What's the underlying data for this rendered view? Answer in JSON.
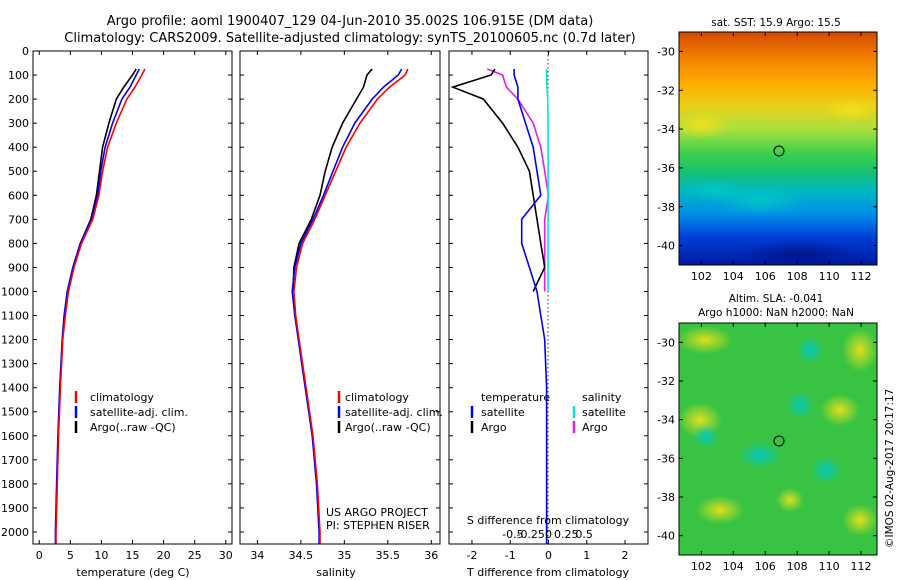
{
  "title_line1": "Argo profile: aoml 1900407_129 04-Jun-2010 35.002S 106.915E (DM data)",
  "title_line2": "Climatology: CARS2009. Satellite-adjusted climatology: synTS_20100605.nc (0.7d later)",
  "colors": {
    "climatology": "#ff0000",
    "satellite": "#0000ff",
    "argo": "#000000",
    "sal_satellite": "#00e5e5",
    "sal_argo": "#e020e0"
  },
  "depth_ticks": [
    "0",
    "100",
    "200",
    "300",
    "400",
    "500",
    "600",
    "700",
    "800",
    "900",
    "1000",
    "1100",
    "1200",
    "1300",
    "1400",
    "1500",
    "1600",
    "1700",
    "1800",
    "1900",
    "2000"
  ],
  "temp_panel": {
    "xlabel": "temperature (deg C)",
    "xticks": [
      "0",
      "5",
      "10",
      "15",
      "20",
      "25",
      "30"
    ],
    "legend": [
      "climatology",
      "satellite-adj. clim.",
      "Argo(..raw -QC)"
    ]
  },
  "sal_panel": {
    "xlabel": "salinity",
    "xticks": [
      "34",
      "34.5",
      "35",
      "35.5",
      "36"
    ],
    "legend": [
      "climatology",
      "satellite-adj. clim.",
      "Argo(..raw -QC)"
    ],
    "note1": "US ARGO PROJECT",
    "note2": "PI: STEPHEN RISER"
  },
  "diff_panel": {
    "xlabel": "T difference from climatology",
    "top_label": "S difference from climatology",
    "xticks_T": [
      "-2",
      "-1",
      "0",
      "1",
      "2"
    ],
    "xticks_S": [
      "-0.5",
      "-0.25",
      "0",
      "0.25",
      "0.5"
    ],
    "legend_temp_header": "temperature",
    "legend_sal_header": "salinity",
    "legend_temp": [
      "satellite",
      "Argo"
    ],
    "legend_sal": [
      "satellite",
      "Argo"
    ]
  },
  "map_sst": {
    "title": "sat. SST: 15.9 Argo: 15.5",
    "yticks": [
      "-30",
      "-32",
      "-34",
      "-36",
      "-38",
      "-40"
    ],
    "xticks": [
      "102",
      "104",
      "106",
      "108",
      "110",
      "112"
    ]
  },
  "map_sla": {
    "title1": "Altim. SLA: -0.041",
    "title2": "Argo h1000: NaN h2000: NaN",
    "yticks": [
      "-30",
      "-32",
      "-34",
      "-36",
      "-38",
      "-40"
    ],
    "xticks": [
      "102",
      "104",
      "106",
      "108",
      "110",
      "112"
    ]
  },
  "footer": "©IMOS 02-Aug-2017 20:17:17",
  "chart_data": [
    {
      "type": "line",
      "xlabel": "temperature (deg C)",
      "ylabel": "",
      "xlim": [
        -1,
        31
      ],
      "ylim": [
        2050,
        0
      ],
      "y": [
        75,
        100,
        150,
        200,
        300,
        400,
        500,
        600,
        700,
        800,
        900,
        1000,
        1100,
        1200,
        1400,
        1600,
        1800,
        2000,
        2050
      ],
      "series": [
        {
          "name": "climatology",
          "x": [
            17.0,
            16.5,
            15.4,
            14.1,
            12.4,
            11.0,
            10.2,
            9.6,
            8.6,
            6.8,
            5.6,
            4.7,
            4.2,
            3.8,
            3.4,
            3.1,
            2.9,
            2.7,
            2.7
          ]
        },
        {
          "name": "satellite-adj. clim.",
          "x": [
            16.1,
            15.6,
            14.6,
            13.3,
            11.8,
            10.6,
            9.9,
            9.4,
            8.4,
            6.6,
            5.4,
            4.5,
            4.0,
            3.7,
            3.3,
            3.0,
            2.8,
            2.6,
            2.6
          ]
        },
        {
          "name": "Argo(..raw -QC)",
          "x": [
            15.6,
            15.0,
            13.6,
            12.4,
            11.2,
            10.2,
            9.7,
            9.2,
            8.3,
            6.6,
            5.5,
            4.7
          ]
        }
      ]
    },
    {
      "type": "line",
      "xlabel": "salinity",
      "ylabel": "",
      "xlim": [
        33.8,
        36.1
      ],
      "ylim": [
        2050,
        0
      ],
      "y": [
        75,
        100,
        150,
        200,
        300,
        400,
        500,
        600,
        700,
        800,
        900,
        1000,
        1100,
        1200,
        1400,
        1600,
        1800,
        2000,
        2050
      ],
      "series": [
        {
          "name": "climatology",
          "x": [
            35.73,
            35.7,
            35.52,
            35.38,
            35.18,
            35.02,
            34.9,
            34.78,
            34.66,
            34.52,
            34.45,
            34.42,
            34.44,
            34.48,
            34.56,
            34.64,
            34.69,
            34.72,
            34.72
          ]
        },
        {
          "name": "satellite-adj. clim.",
          "x": [
            35.66,
            35.62,
            35.45,
            35.32,
            35.12,
            34.98,
            34.87,
            34.76,
            34.64,
            34.5,
            34.43,
            34.4,
            34.43,
            34.47,
            34.55,
            34.63,
            34.68,
            34.71,
            34.71
          ]
        },
        {
          "name": "Argo(..raw -QC)",
          "x": [
            35.32,
            35.26,
            35.22,
            35.14,
            34.98,
            34.86,
            34.78,
            34.72,
            34.62,
            34.48,
            34.42,
            34.41
          ]
        }
      ]
    },
    {
      "type": "line",
      "xlabel": "T difference from climatology",
      "ylabel": "",
      "xlim": [
        -2.6,
        2.6
      ],
      "ylim": [
        2050,
        0
      ],
      "y": [
        75,
        100,
        150,
        200,
        300,
        400,
        500,
        600,
        700,
        800,
        900,
        1000,
        1100,
        1200,
        1400,
        1600,
        1800,
        2000,
        2050
      ],
      "series": [
        {
          "name": "temperature satellite",
          "x": [
            -0.9,
            -0.9,
            -0.8,
            -0.8,
            -0.6,
            -0.4,
            -0.3,
            -0.2,
            -0.7,
            -0.7,
            -0.5,
            -0.3,
            -0.2,
            -0.1,
            -0.05,
            -0.05,
            -0.05,
            -0.05,
            -0.05
          ]
        },
        {
          "name": "temperature Argo",
          "x": [
            -1.4,
            -1.5,
            -2.5,
            -1.7,
            -1.2,
            -0.8,
            -0.5,
            -0.4,
            -0.3,
            -0.2,
            -0.1,
            -0.4
          ]
        },
        {
          "name": "salinity satellite",
          "x": [
            -0.05,
            -0.05,
            -0.04,
            -0.02,
            -0.01,
            -0.01,
            -0.01,
            -0.01,
            -0.01,
            -0.01,
            -0.01,
            -0.01
          ]
        },
        {
          "name": "salinity Argo",
          "x": [
            -1.6,
            -1.2,
            -1.1,
            -0.8,
            -0.4,
            -0.2,
            -0.1,
            0.0,
            -0.1,
            -0.1,
            -0.1,
            -0.1
          ]
        }
      ]
    }
  ]
}
